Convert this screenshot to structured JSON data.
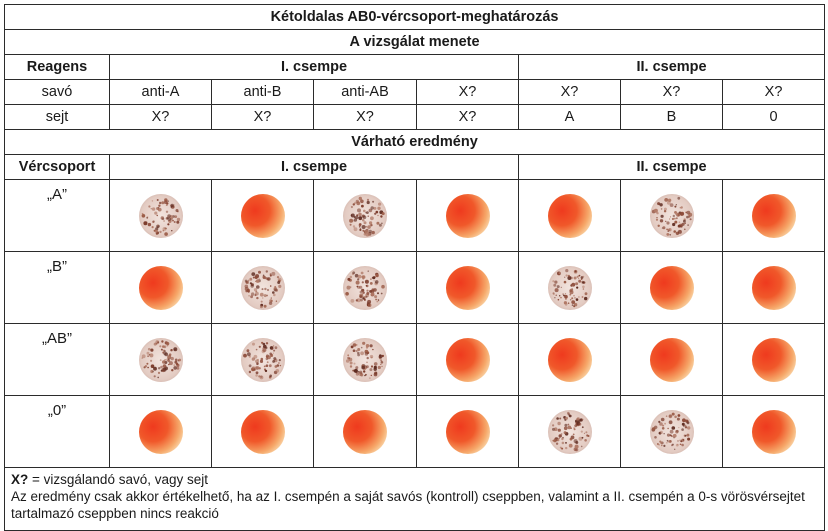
{
  "title": "Kétoldalas AB0-vércsoport-meghatározás",
  "procedure": {
    "heading": "A vizsgálat menete",
    "reagent_label": "Reagens",
    "plate1": "I. csempe",
    "plate2": "II. csempe",
    "serum_label": "savó",
    "cell_label": "sejt",
    "serum_row": [
      "anti-A",
      "anti-B",
      "anti-AB",
      "X?",
      "X?",
      "X?",
      "X?"
    ],
    "cell_row": [
      "X?",
      "X?",
      "X?",
      "X?",
      "A",
      "B",
      "0"
    ]
  },
  "results": {
    "heading": "Várható eredmény",
    "group_label": "Vércsoport",
    "plate1": "I. csempe",
    "plate2": "II. csempe",
    "rows": [
      {
        "group": "„A”",
        "reactions": [
          "agglutinated",
          "clear",
          "agglutinated",
          "clear",
          "clear",
          "agglutinated",
          "clear"
        ]
      },
      {
        "group": "„B”",
        "reactions": [
          "clear",
          "agglutinated",
          "agglutinated",
          "clear",
          "agglutinated",
          "clear",
          "clear"
        ]
      },
      {
        "group": "„AB”",
        "reactions": [
          "agglutinated",
          "agglutinated",
          "agglutinated",
          "clear",
          "clear",
          "clear",
          "clear"
        ]
      },
      {
        "group": "„0”",
        "reactions": [
          "clear",
          "clear",
          "clear",
          "clear",
          "agglutinated",
          "agglutinated",
          "clear"
        ]
      }
    ]
  },
  "footnote": {
    "key": "X?",
    "key_text": " = vizsgálandó savó, vagy sejt",
    "note": "Az eredmény csak akkor értékelhető, ha az I. csempén a saját savós (kontroll) cseppben, valamint a II. csempén a 0-s vörösvérsejtet tartalmazó cseppben nincs reakció"
  },
  "colors": {
    "border": "#2b2b2b",
    "clear_drop": "#e8492a",
    "agglutinated_drop": "#b98f86"
  }
}
